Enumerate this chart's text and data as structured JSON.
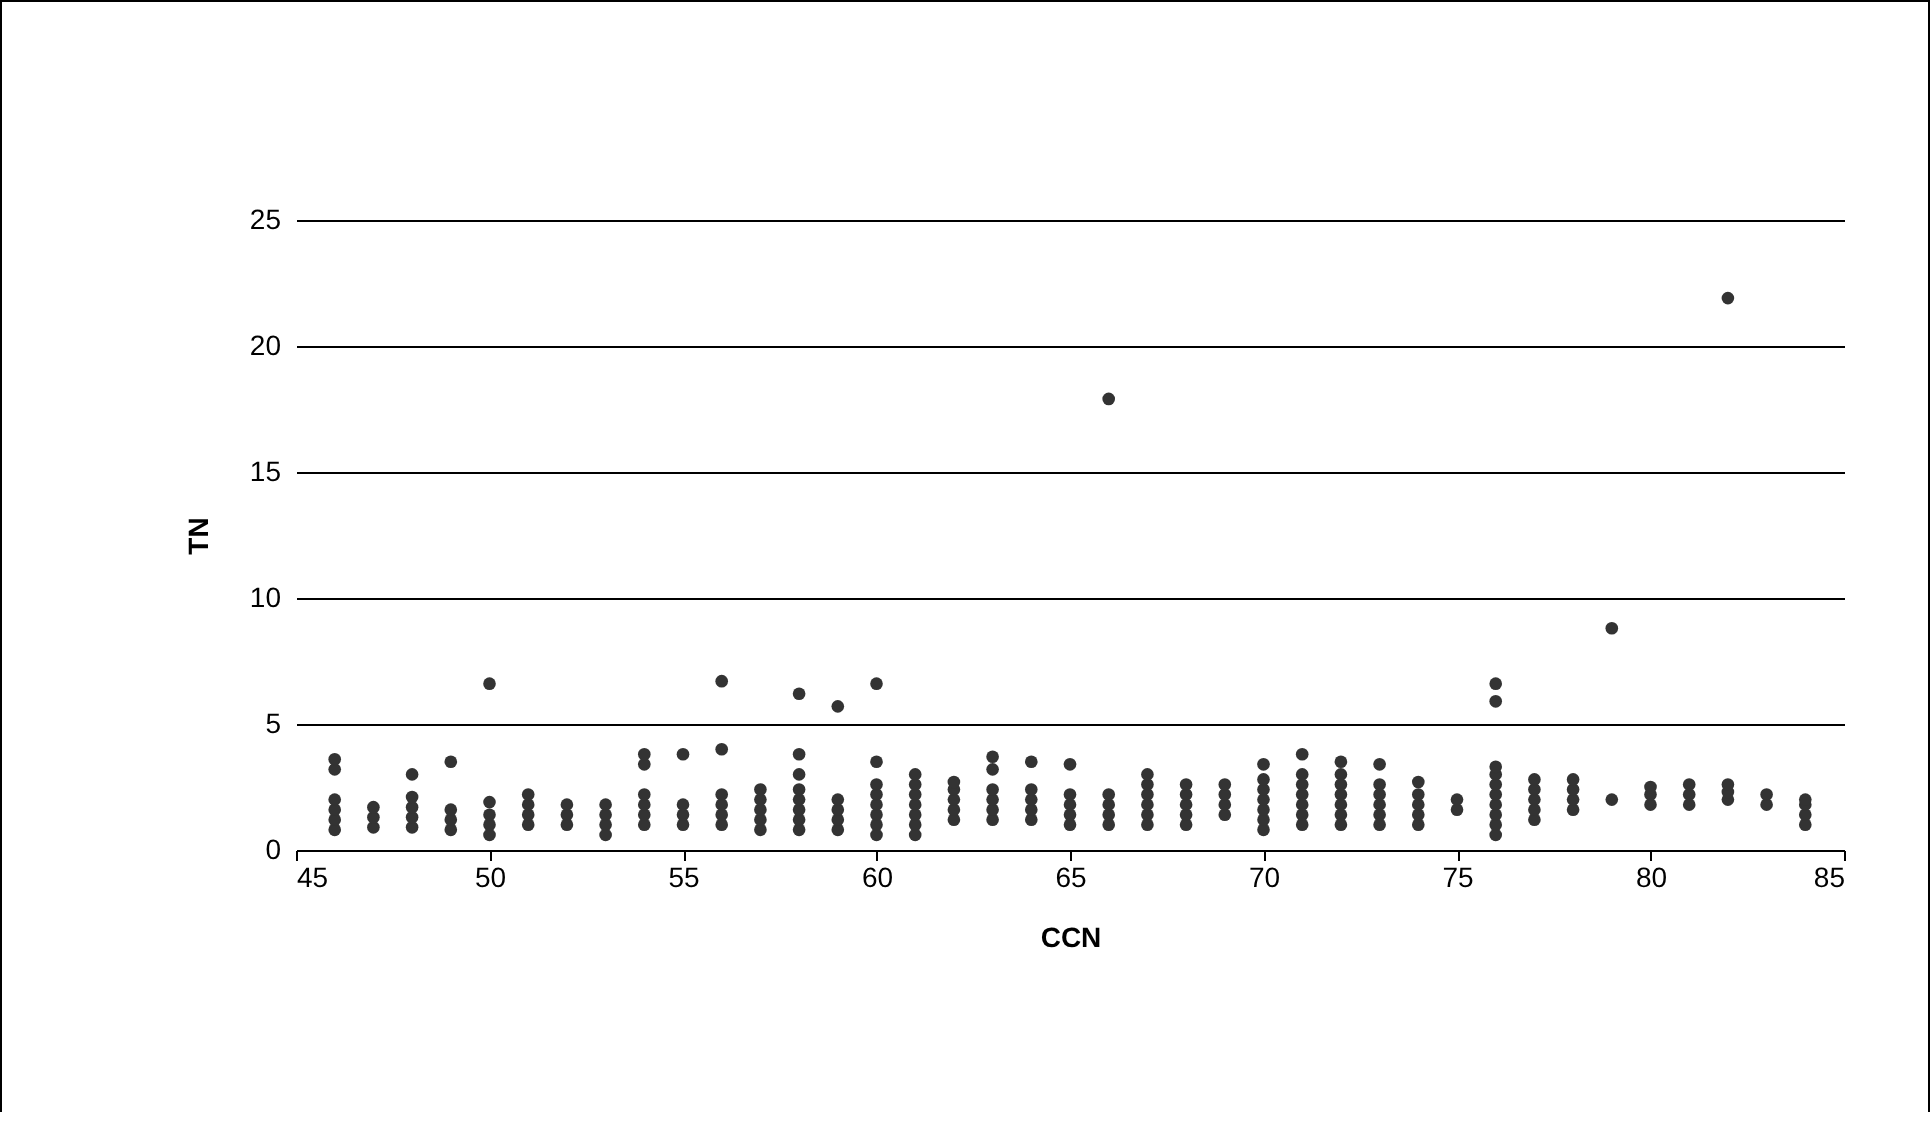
{
  "chart_data": {
    "type": "scatter",
    "xlabel": "CCN",
    "ylabel": "TN",
    "xlim": [
      45,
      85
    ],
    "xticks": [
      45,
      50,
      55,
      60,
      65,
      70,
      75,
      80,
      85
    ],
    "ylim": [
      0,
      25
    ],
    "yticks": [
      0,
      5,
      10,
      15,
      20,
      25
    ],
    "grid": "y",
    "marker": "circle",
    "series": [
      {
        "color": "#333333",
        "x": [
          46,
          46,
          46,
          46,
          46,
          46,
          47,
          47,
          47,
          48,
          48,
          48,
          48,
          48,
          49,
          49,
          49,
          49,
          50,
          50,
          50,
          50,
          50,
          51,
          51,
          51,
          51,
          52,
          52,
          52,
          53,
          53,
          53,
          53,
          54,
          54,
          54,
          54,
          54,
          54,
          55,
          55,
          55,
          55,
          56,
          56,
          56,
          56,
          56,
          56,
          57,
          57,
          57,
          57,
          57,
          58,
          58,
          58,
          58,
          58,
          58,
          58,
          58,
          59,
          59,
          59,
          59,
          59,
          60,
          60,
          60,
          60,
          60,
          60,
          60,
          60,
          61,
          61,
          61,
          61,
          61,
          61,
          61,
          62,
          62,
          62,
          62,
          62,
          63,
          63,
          63,
          63,
          63,
          63,
          64,
          64,
          64,
          64,
          64,
          65,
          65,
          65,
          65,
          65,
          66,
          66,
          66,
          66,
          66,
          67,
          67,
          67,
          67,
          67,
          67,
          68,
          68,
          68,
          68,
          68,
          69,
          69,
          69,
          69,
          70,
          70,
          70,
          70,
          70,
          70,
          70,
          71,
          71,
          71,
          71,
          71,
          71,
          71,
          72,
          72,
          72,
          72,
          72,
          72,
          72,
          73,
          73,
          73,
          73,
          73,
          73,
          74,
          74,
          74,
          74,
          74,
          75,
          75,
          76,
          76,
          76,
          76,
          76,
          76,
          76,
          76,
          76,
          76,
          77,
          77,
          77,
          77,
          77,
          78,
          78,
          78,
          78,
          79,
          79,
          80,
          80,
          80,
          81,
          81,
          81,
          82,
          82,
          82,
          82,
          83,
          83,
          84,
          84,
          84,
          84
        ],
        "values": [
          0.8,
          1.2,
          1.6,
          2.0,
          3.2,
          3.6,
          0.9,
          1.3,
          1.7,
          0.9,
          1.3,
          1.7,
          2.1,
          3.0,
          0.8,
          1.2,
          1.6,
          3.5,
          0.6,
          1.0,
          1.4,
          1.9,
          6.6,
          1.0,
          1.4,
          1.8,
          2.2,
          1.0,
          1.4,
          1.8,
          0.6,
          1.0,
          1.4,
          1.8,
          1.0,
          1.4,
          1.8,
          2.2,
          3.4,
          3.8,
          1.0,
          1.4,
          1.8,
          3.8,
          1.0,
          1.4,
          1.8,
          2.2,
          4.0,
          6.7,
          0.8,
          1.2,
          1.6,
          2.0,
          2.4,
          0.8,
          1.2,
          1.6,
          2.0,
          2.4,
          3.0,
          3.8,
          6.2,
          0.8,
          1.2,
          1.6,
          2.0,
          5.7,
          0.6,
          1.0,
          1.4,
          1.8,
          2.2,
          2.6,
          3.5,
          6.6,
          0.6,
          1.0,
          1.4,
          1.8,
          2.2,
          2.6,
          3.0,
          1.2,
          1.6,
          2.0,
          2.4,
          2.7,
          1.2,
          1.6,
          2.0,
          2.4,
          3.2,
          3.7,
          1.2,
          1.6,
          2.0,
          2.4,
          3.5,
          1.0,
          1.4,
          1.8,
          2.2,
          3.4,
          1.0,
          1.4,
          1.8,
          2.2,
          17.9,
          1.0,
          1.4,
          1.8,
          2.2,
          2.6,
          3.0,
          1.0,
          1.4,
          1.8,
          2.2,
          2.6,
          1.4,
          1.8,
          2.2,
          2.6,
          0.8,
          1.2,
          1.6,
          2.0,
          2.4,
          2.8,
          3.4,
          1.0,
          1.4,
          1.8,
          2.2,
          2.6,
          3.0,
          3.8,
          1.0,
          1.4,
          1.8,
          2.2,
          2.6,
          3.0,
          3.5,
          1.0,
          1.4,
          1.8,
          2.2,
          2.6,
          3.4,
          1.0,
          1.4,
          1.8,
          2.2,
          2.7,
          1.6,
          2.0,
          0.6,
          1.0,
          1.4,
          1.8,
          2.2,
          2.6,
          3.0,
          3.3,
          5.9,
          6.6,
          1.2,
          1.6,
          2.0,
          2.4,
          2.8,
          1.6,
          2.0,
          2.4,
          2.8,
          2.0,
          8.8,
          1.8,
          2.2,
          2.5,
          1.8,
          2.2,
          2.6,
          2.0,
          2.3,
          2.6,
          21.9,
          1.8,
          2.2,
          1.0,
          1.4,
          1.8,
          2.0
        ]
      }
    ]
  }
}
